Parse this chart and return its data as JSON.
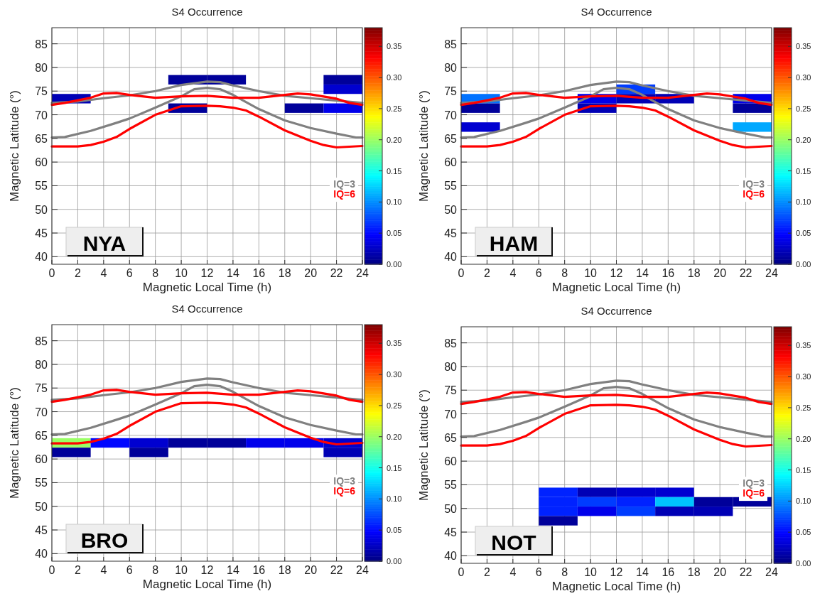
{
  "chart_data": [
    {
      "type": "heatmap",
      "title": "S4 Occurrence",
      "xlabel": "Magnetic Local Time (h)",
      "ylabel": "Magnetic Latitude (°)",
      "annotations": [
        "NYA"
      ],
      "grid": true,
      "legend": "right",
      "x": [
        1.5,
        4.5,
        7.5,
        10.5,
        13.5,
        16.5,
        19.5,
        22.5
      ],
      "y": [
        77.4,
        75.4,
        73.4,
        71.4
      ],
      "cells": [
        [
          null,
          null,
          null,
          0.01,
          0.01,
          null,
          null,
          0.01
        ],
        [
          null,
          null,
          null,
          null,
          null,
          null,
          null,
          0.03
        ],
        [
          0.02,
          null,
          null,
          null,
          null,
          null,
          null,
          null
        ],
        [
          null,
          null,
          null,
          0.01,
          null,
          null,
          0.01,
          0.04
        ]
      ],
      "clim": [
        0,
        0.38
      ],
      "cticks": [
        {
          "value": 0,
          "label": "0.00"
        },
        {
          "value": 0.05,
          "label": "0.05"
        },
        {
          "value": 0.1,
          "label": "0.10"
        },
        {
          "value": 0.15,
          "label": "0.15"
        },
        {
          "value": 0.2,
          "label": "0.20"
        },
        {
          "value": 0.25,
          "label": "0.25"
        },
        {
          "value": 0.3,
          "label": "0.30"
        },
        {
          "value": 0.35,
          "label": "0.35"
        }
      ],
      "xlim": [
        0,
        24
      ],
      "xticks": [
        0,
        2,
        4,
        6,
        8,
        10,
        12,
        14,
        16,
        18,
        20,
        22,
        24
      ],
      "ylim": [
        38.4,
        88.4
      ],
      "yticks": [
        40,
        45,
        50,
        55,
        60,
        65,
        70,
        75,
        80,
        85
      ],
      "series": [
        {
          "type": "line",
          "name": "IQ=3",
          "color": "#808080",
          "x": [
            0,
            2,
            4,
            6,
            8,
            10,
            12,
            13,
            14,
            16,
            18,
            20,
            22,
            24
          ],
          "values": [
            72.5,
            72.8,
            73.5,
            74.1,
            75.0,
            76.3,
            77.0,
            76.9,
            76.2,
            75.0,
            74.0,
            73.5,
            73.0,
            72.5
          ]
        },
        {
          "type": "line",
          "color": "#808080",
          "x": [
            0,
            1,
            3,
            5,
            6,
            8,
            10,
            11,
            12,
            13,
            14,
            16,
            18,
            20,
            22,
            23.5,
            24
          ],
          "values": [
            65.2,
            65.3,
            66.6,
            68.3,
            69.2,
            71.5,
            73.9,
            75.4,
            75.7,
            75.4,
            74.2,
            71.2,
            68.8,
            67.2,
            66.0,
            65.2,
            65.2
          ]
        },
        {
          "type": "line",
          "name": "IQ=6",
          "color": "#ff0000",
          "x": [
            0,
            1,
            3,
            4,
            5,
            6,
            8,
            10,
            12,
            14,
            16,
            18,
            19,
            20,
            22,
            23,
            24
          ],
          "values": [
            72.1,
            72.5,
            73.6,
            74.5,
            74.6,
            74.2,
            73.6,
            73.9,
            74.0,
            73.6,
            73.6,
            74.2,
            74.5,
            74.3,
            73.4,
            72.5,
            72.1
          ]
        },
        {
          "type": "line",
          "color": "#ff0000",
          "x": [
            0,
            2,
            3,
            4,
            5,
            6,
            8,
            10,
            12,
            13,
            14,
            15,
            16,
            18,
            20,
            21,
            22,
            24
          ],
          "values": [
            63.3,
            63.3,
            63.6,
            64.3,
            65.3,
            67.0,
            70.0,
            71.8,
            71.9,
            71.8,
            71.5,
            70.9,
            69.6,
            66.7,
            64.5,
            63.6,
            63.1,
            63.4
          ]
        }
      ]
    },
    {
      "type": "heatmap",
      "title": "S4 Occurrence",
      "xlabel": "Magnetic Local Time (h)",
      "ylabel": "Magnetic Latitude (°)",
      "annotations": [
        "HAM"
      ],
      "grid": true,
      "legend": "right",
      "x": [
        1.5,
        4.5,
        7.5,
        10.5,
        13.5,
        16.5,
        19.5,
        22.5
      ],
      "y": [
        75.4,
        73.4,
        71.4,
        67.4
      ],
      "cells": [
        [
          null,
          null,
          null,
          null,
          0.07,
          null,
          null,
          null
        ],
        [
          0.09,
          null,
          null,
          0.04,
          0.02,
          0.02,
          null,
          0.04
        ],
        [
          0.01,
          null,
          null,
          0.02,
          null,
          null,
          null,
          0.01
        ],
        [
          0.03,
          null,
          null,
          null,
          null,
          null,
          null,
          0.11
        ]
      ],
      "clim": [
        0,
        0.38
      ],
      "cticks": [
        {
          "value": 0,
          "label": "0.00"
        },
        {
          "value": 0.05,
          "label": "0.05"
        },
        {
          "value": 0.1,
          "label": "0.10"
        },
        {
          "value": 0.15,
          "label": "0.15"
        },
        {
          "value": 0.2,
          "label": "0.20"
        },
        {
          "value": 0.25,
          "label": "0.25"
        },
        {
          "value": 0.3,
          "label": "0.30"
        },
        {
          "value": 0.35,
          "label": "0.35"
        }
      ],
      "xlim": [
        0,
        24
      ],
      "xticks": [
        0,
        2,
        4,
        6,
        8,
        10,
        12,
        14,
        16,
        18,
        20,
        22,
        24
      ],
      "ylim": [
        38.4,
        88.4
      ],
      "yticks": [
        40,
        45,
        50,
        55,
        60,
        65,
        70,
        75,
        80,
        85
      ],
      "series": [
        {
          "type": "line",
          "name": "IQ=3",
          "color": "#808080",
          "x": [
            0,
            2,
            4,
            6,
            8,
            10,
            12,
            13,
            14,
            16,
            18,
            20,
            22,
            24
          ],
          "values": [
            72.5,
            72.8,
            73.5,
            74.1,
            75.0,
            76.3,
            77.0,
            76.9,
            76.2,
            75.0,
            74.0,
            73.5,
            73.0,
            72.5
          ]
        },
        {
          "type": "line",
          "color": "#808080",
          "x": [
            0,
            1,
            3,
            5,
            6,
            8,
            10,
            11,
            12,
            13,
            14,
            16,
            18,
            20,
            22,
            23.5,
            24
          ],
          "values": [
            65.2,
            65.3,
            66.6,
            68.3,
            69.2,
            71.5,
            73.9,
            75.4,
            75.7,
            75.4,
            74.2,
            71.2,
            68.8,
            67.2,
            66.0,
            65.2,
            65.2
          ]
        },
        {
          "type": "line",
          "name": "IQ=6",
          "color": "#ff0000",
          "x": [
            0,
            1,
            3,
            4,
            5,
            6,
            8,
            10,
            12,
            14,
            16,
            18,
            19,
            20,
            22,
            23,
            24
          ],
          "values": [
            72.1,
            72.5,
            73.6,
            74.5,
            74.6,
            74.2,
            73.6,
            73.9,
            74.0,
            73.6,
            73.6,
            74.2,
            74.5,
            74.3,
            73.4,
            72.5,
            72.1
          ]
        },
        {
          "type": "line",
          "color": "#ff0000",
          "x": [
            0,
            2,
            3,
            4,
            5,
            6,
            8,
            10,
            12,
            13,
            14,
            15,
            16,
            18,
            20,
            21,
            22,
            24
          ],
          "values": [
            63.3,
            63.3,
            63.6,
            64.3,
            65.3,
            67.0,
            70.0,
            71.8,
            71.9,
            71.8,
            71.5,
            70.9,
            69.6,
            66.7,
            64.5,
            63.6,
            63.1,
            63.4
          ]
        }
      ]
    },
    {
      "type": "heatmap",
      "title": "S4 Occurrence",
      "xlabel": "Magnetic Local Time (h)",
      "ylabel": "Magnetic Latitude (°)",
      "annotations": [
        "BRO"
      ],
      "grid": true,
      "legend": "right",
      "x": [
        1.5,
        4.5,
        7.5,
        10.5,
        13.5,
        16.5,
        19.5,
        22.5
      ],
      "y": [
        63.4,
        61.4
      ],
      "cells": [
        [
          0.2,
          0.05,
          0.03,
          0.01,
          0.01,
          0.04,
          0.04,
          0.03
        ],
        [
          0.01,
          null,
          0.01,
          null,
          null,
          null,
          null,
          0.02
        ]
      ],
      "clim": [
        0,
        0.38
      ],
      "cticks": [
        {
          "value": 0,
          "label": "0.00"
        },
        {
          "value": 0.05,
          "label": "0.05"
        },
        {
          "value": 0.1,
          "label": "0.10"
        },
        {
          "value": 0.15,
          "label": "0.15"
        },
        {
          "value": 0.2,
          "label": "0.20"
        },
        {
          "value": 0.25,
          "label": "0.25"
        },
        {
          "value": 0.3,
          "label": "0.30"
        },
        {
          "value": 0.35,
          "label": "0.35"
        }
      ],
      "xlim": [
        0,
        24
      ],
      "xticks": [
        0,
        2,
        4,
        6,
        8,
        10,
        12,
        14,
        16,
        18,
        20,
        22,
        24
      ],
      "ylim": [
        38.4,
        88.4
      ],
      "yticks": [
        40,
        45,
        50,
        55,
        60,
        65,
        70,
        75,
        80,
        85
      ],
      "series": [
        {
          "type": "line",
          "name": "IQ=3",
          "color": "#808080",
          "x": [
            0,
            2,
            4,
            6,
            8,
            10,
            12,
            13,
            14,
            16,
            18,
            20,
            22,
            24
          ],
          "values": [
            72.5,
            72.8,
            73.5,
            74.1,
            75.0,
            76.3,
            77.0,
            76.9,
            76.2,
            75.0,
            74.0,
            73.5,
            73.0,
            72.5
          ]
        },
        {
          "type": "line",
          "color": "#808080",
          "x": [
            0,
            1,
            3,
            5,
            6,
            8,
            10,
            11,
            12,
            13,
            14,
            16,
            18,
            20,
            22,
            23.5,
            24
          ],
          "values": [
            65.2,
            65.3,
            66.6,
            68.3,
            69.2,
            71.5,
            73.9,
            75.4,
            75.7,
            75.4,
            74.2,
            71.2,
            68.8,
            67.2,
            66.0,
            65.2,
            65.2
          ]
        },
        {
          "type": "line",
          "name": "IQ=6",
          "color": "#ff0000",
          "x": [
            0,
            1,
            3,
            4,
            5,
            6,
            8,
            10,
            12,
            14,
            16,
            18,
            19,
            20,
            22,
            23,
            24
          ],
          "values": [
            72.1,
            72.5,
            73.6,
            74.5,
            74.6,
            74.2,
            73.6,
            73.9,
            74.0,
            73.6,
            73.6,
            74.2,
            74.5,
            74.3,
            73.4,
            72.5,
            72.1
          ]
        },
        {
          "type": "line",
          "color": "#ff0000",
          "x": [
            0,
            2,
            3,
            4,
            5,
            6,
            8,
            10,
            12,
            13,
            14,
            15,
            16,
            18,
            20,
            21,
            22,
            24
          ],
          "values": [
            63.3,
            63.3,
            63.6,
            64.3,
            65.3,
            67.0,
            70.0,
            71.8,
            71.9,
            71.8,
            71.5,
            70.9,
            69.6,
            66.7,
            64.5,
            63.6,
            63.1,
            63.4
          ]
        }
      ]
    },
    {
      "type": "heatmap",
      "title": "S4 Occurrence",
      "xlabel": "Magnetic Local Time (h)",
      "ylabel": "Magnetic Latitude (°)",
      "annotations": [
        "NOT"
      ],
      "grid": true,
      "legend": "right",
      "x": [
        1.5,
        4.5,
        7.5,
        10.5,
        13.5,
        16.5,
        19.5,
        22.5
      ],
      "y": [
        53.4,
        51.4,
        49.4,
        47.4
      ],
      "cells": [
        [
          null,
          null,
          0.06,
          0.02,
          0.03,
          0.03,
          null,
          null
        ],
        [
          null,
          null,
          0.06,
          0.07,
          0.06,
          0.12,
          0.01,
          0.01
        ],
        [
          null,
          null,
          0.06,
          0.04,
          0.07,
          0.02,
          0.02,
          null
        ],
        [
          null,
          null,
          0.01,
          null,
          null,
          null,
          null,
          null
        ]
      ],
      "clim": [
        0,
        0.38
      ],
      "cticks": [
        {
          "value": 0,
          "label": "0.00"
        },
        {
          "value": 0.05,
          "label": "0.05"
        },
        {
          "value": 0.1,
          "label": "0.10"
        },
        {
          "value": 0.15,
          "label": "0.15"
        },
        {
          "value": 0.2,
          "label": "0.20"
        },
        {
          "value": 0.25,
          "label": "0.25"
        },
        {
          "value": 0.3,
          "label": "0.30"
        },
        {
          "value": 0.35,
          "label": "0.35"
        }
      ],
      "xlim": [
        0,
        24
      ],
      "xticks": [
        0,
        2,
        4,
        6,
        8,
        10,
        12,
        14,
        16,
        18,
        20,
        22,
        24
      ],
      "ylim": [
        38.4,
        88.4
      ],
      "yticks": [
        40,
        45,
        50,
        55,
        60,
        65,
        70,
        75,
        80,
        85
      ],
      "series": [
        {
          "type": "line",
          "name": "IQ=3",
          "color": "#808080",
          "x": [
            0,
            2,
            4,
            6,
            8,
            10,
            12,
            13,
            14,
            16,
            18,
            20,
            22,
            24
          ],
          "values": [
            72.5,
            72.8,
            73.5,
            74.1,
            75.0,
            76.3,
            77.0,
            76.9,
            76.2,
            75.0,
            74.0,
            73.5,
            73.0,
            72.5
          ]
        },
        {
          "type": "line",
          "color": "#808080",
          "x": [
            0,
            1,
            3,
            5,
            6,
            8,
            10,
            11,
            12,
            13,
            14,
            16,
            18,
            20,
            22,
            23.5,
            24
          ],
          "values": [
            65.2,
            65.3,
            66.6,
            68.3,
            69.2,
            71.5,
            73.9,
            75.4,
            75.7,
            75.4,
            74.2,
            71.2,
            68.8,
            67.2,
            66.0,
            65.2,
            65.2
          ]
        },
        {
          "type": "line",
          "name": "IQ=6",
          "color": "#ff0000",
          "x": [
            0,
            1,
            3,
            4,
            5,
            6,
            8,
            10,
            12,
            14,
            16,
            18,
            19,
            20,
            22,
            23,
            24
          ],
          "values": [
            72.1,
            72.5,
            73.6,
            74.5,
            74.6,
            74.2,
            73.6,
            73.9,
            74.0,
            73.6,
            73.6,
            74.2,
            74.5,
            74.3,
            73.4,
            72.5,
            72.1
          ]
        },
        {
          "type": "line",
          "color": "#ff0000",
          "x": [
            0,
            2,
            3,
            4,
            5,
            6,
            8,
            10,
            12,
            13,
            14,
            15,
            16,
            18,
            20,
            21,
            22,
            24
          ],
          "values": [
            63.3,
            63.3,
            63.6,
            64.3,
            65.3,
            67.0,
            70.0,
            71.8,
            71.9,
            71.8,
            71.5,
            70.9,
            69.6,
            66.7,
            64.5,
            63.6,
            63.1,
            63.4
          ]
        }
      ]
    }
  ]
}
